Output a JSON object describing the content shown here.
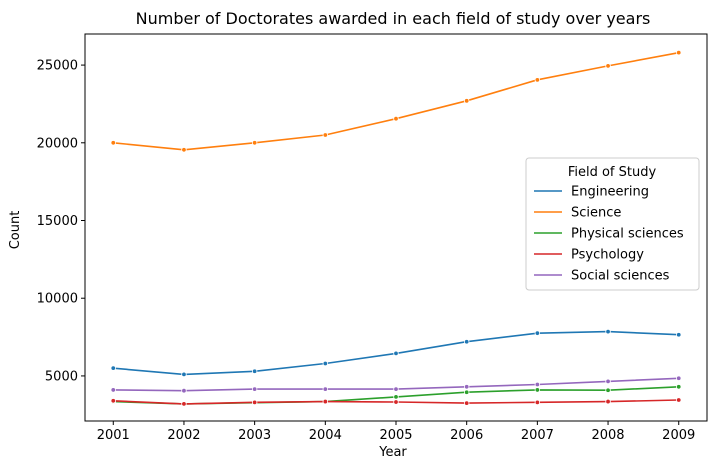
{
  "chart_data": {
    "type": "line",
    "title": "Number of Doctorates awarded in each field of study over years",
    "xlabel": "Year",
    "ylabel": "Count",
    "x": [
      2001,
      2002,
      2003,
      2004,
      2005,
      2006,
      2007,
      2008,
      2009
    ],
    "xlim": [
      2000.6,
      2009.4
    ],
    "ylim": [
      2100,
      27000
    ],
    "yticks": [
      5000,
      10000,
      15000,
      20000,
      25000
    ],
    "grid": false,
    "legend": {
      "title": "Field of Study",
      "placement": "center-right"
    },
    "series": [
      {
        "name": "Engineering",
        "color": "#1f77b4",
        "values": [
          5500,
          5100,
          5300,
          5800,
          6450,
          7200,
          7750,
          7850,
          7650
        ]
      },
      {
        "name": "Science",
        "color": "#ff7f0e",
        "values": [
          20000,
          19550,
          20000,
          20500,
          21550,
          22700,
          24050,
          24950,
          25800
        ]
      },
      {
        "name": "Physical sciences",
        "color": "#2ca02c",
        "values": [
          3350,
          3200,
          3280,
          3350,
          3650,
          3950,
          4100,
          4080,
          4300
        ]
      },
      {
        "name": "Psychology",
        "color": "#d62728",
        "values": [
          3400,
          3200,
          3300,
          3350,
          3320,
          3250,
          3300,
          3350,
          3450
        ]
      },
      {
        "name": "Social sciences",
        "color": "#9467bd",
        "values": [
          4100,
          4050,
          4150,
          4150,
          4150,
          4300,
          4450,
          4650,
          4850
        ]
      }
    ]
  }
}
